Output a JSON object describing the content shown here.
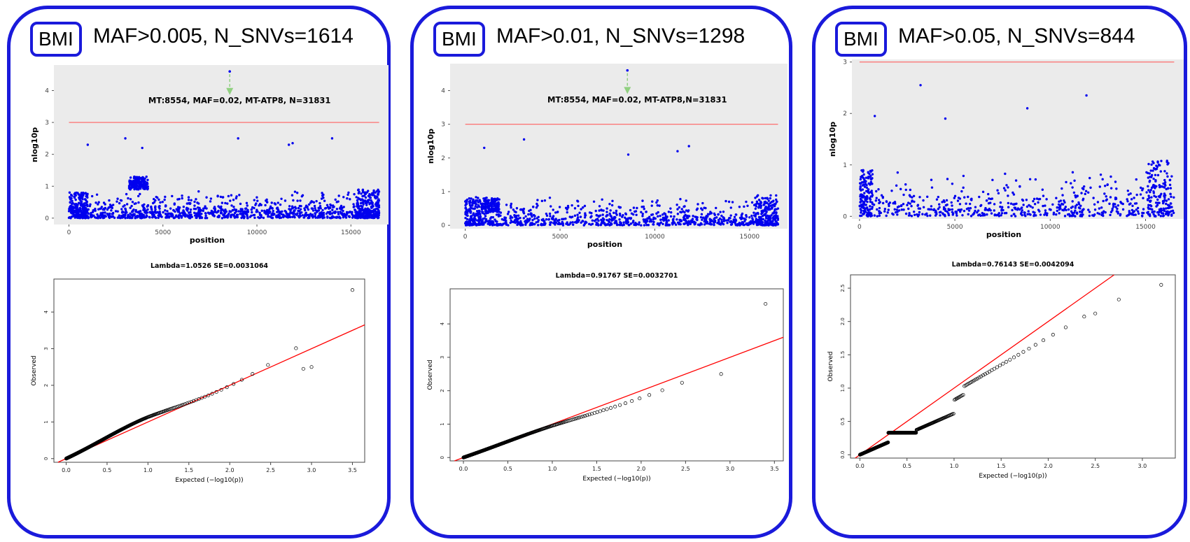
{
  "chart_data": [
    {
      "panel_label": "BMI",
      "title": "MAF>0.005, N_SNVs=1614",
      "manhattan": {
        "type": "scatter",
        "xlabel": "position",
        "ylabel": "nlog10p",
        "xlim": [
          -800,
          17000
        ],
        "ylim": [
          -0.2,
          4.8
        ],
        "xticks": [
          0,
          5000,
          10000,
          15000
        ],
        "yticks": [
          0,
          1,
          2,
          3,
          4
        ],
        "threshold": 3,
        "n_points": 1614,
        "top_hit": {
          "x": 8554,
          "y": 4.6
        },
        "annotation": "MT:8554, MAF=0.02,  MT-ATP8,  N=31831",
        "annotation_pos": [
          8554,
          3.6
        ],
        "background": "#ebebeb",
        "point_color": "#0000ee",
        "line_color": "#ff6060",
        "arrow_color": "#90d080",
        "seed": 11,
        "dense_zones": [
          [
            3200,
            4200,
            0.9,
            1.3
          ],
          [
            15300,
            16500,
            0.0,
            0.9
          ],
          [
            0,
            1000,
            0.0,
            0.8
          ]
        ],
        "outliers": [
          [
            3000,
            2.5
          ],
          [
            3900,
            2.2
          ],
          [
            9000,
            2.5
          ],
          [
            11700,
            2.3
          ],
          [
            11900,
            2.35
          ],
          [
            14000,
            2.5
          ],
          [
            1000,
            2.3
          ]
        ]
      },
      "qq": {
        "type": "scatter",
        "title": "Lambda=1.0526 SE=0.0031064",
        "xlabel": "Expected (−log10(p))",
        "ylabel": "Observed",
        "xlim": [
          -0.15,
          3.65
        ],
        "ylim": [
          -0.1,
          4.9
        ],
        "xticks": [
          "0.0",
          "0.5",
          "1.0",
          "1.5",
          "2.0",
          "2.5",
          "3.0",
          "3.5"
        ],
        "yticks": [
          "0",
          "1",
          "2",
          "3",
          "4"
        ],
        "lambda": 1.0526,
        "max_expected": 3.5,
        "max_observed": 4.6,
        "n_points": 1614,
        "tail_points": [
          [
            2.9,
            2.45
          ],
          [
            3.0,
            2.5
          ],
          [
            3.5,
            4.6
          ]
        ],
        "point_color": "#000000",
        "line_color": "#ff0000",
        "wave": 0.12
      }
    },
    {
      "panel_label": "BMI",
      "title": "MAF>0.01, N_SNVs=1298",
      "manhattan": {
        "type": "scatter",
        "xlabel": "position",
        "ylabel": "nlog10p",
        "xlim": [
          -800,
          17000
        ],
        "ylim": [
          -0.1,
          4.8
        ],
        "xticks": [
          0,
          5000,
          10000,
          15000
        ],
        "yticks": [
          0,
          1,
          2,
          3,
          4
        ],
        "threshold": 3,
        "n_points": 1298,
        "top_hit": {
          "x": 8554,
          "y": 4.6
        },
        "annotation": "MT:8554, MAF=0.02,  MT-ATP8,N=31831",
        "annotation_pos": [
          8554,
          3.65
        ],
        "background": "#ebebeb",
        "point_color": "#0000ee",
        "line_color": "#ff6060",
        "arrow_color": "#90d080",
        "seed": 23,
        "dense_zones": [
          [
            15300,
            16500,
            0.0,
            0.9
          ],
          [
            0,
            1000,
            0.0,
            0.8
          ],
          [
            1000,
            1800,
            0.4,
            0.8
          ]
        ],
        "outliers": [
          [
            3100,
            2.55
          ],
          [
            1000,
            2.3
          ],
          [
            11200,
            2.2
          ],
          [
            11800,
            2.35
          ],
          [
            8600,
            2.1
          ]
        ]
      },
      "qq": {
        "type": "scatter",
        "title": "Lambda=0.91767 SE=0.0032701",
        "xlabel": "Expected (−log10(p))",
        "ylabel": "Observed",
        "xlim": [
          -0.15,
          3.6
        ],
        "ylim": [
          -0.1,
          5.05
        ],
        "xticks": [
          "0.0",
          "0.5",
          "1.0",
          "1.5",
          "2.0",
          "2.5",
          "3.0",
          "3.5"
        ],
        "yticks": [
          "0",
          "1",
          "2",
          "3",
          "4"
        ],
        "lambda": 0.91767,
        "max_expected": 3.4,
        "max_observed": 4.6,
        "n_points": 1298,
        "tail_points": [
          [
            2.9,
            2.5
          ],
          [
            3.4,
            4.6
          ]
        ],
        "point_color": "#000000",
        "line_color": "#ff0000",
        "wave": 0.05
      }
    },
    {
      "panel_label": "BMI",
      "title": "MAF>0.05, N_SNVs=844",
      "manhattan": {
        "type": "scatter",
        "xlabel": "position",
        "ylabel": "nlog10p",
        "xlim": [
          -400,
          17000
        ],
        "ylim": [
          -0.05,
          3.05
        ],
        "xticks": [
          0,
          5000,
          10000,
          15000
        ],
        "yticks": [
          0,
          1,
          2,
          3
        ],
        "threshold": 3,
        "n_points": 844,
        "top_hit": null,
        "annotation": "",
        "annotation_pos": null,
        "background": "#ebebeb",
        "point_color": "#0000ee",
        "line_color": "#ff6060",
        "arrow_color": "#90d080",
        "seed": 37,
        "dense_zones": [
          [
            15100,
            16400,
            0.0,
            1.1
          ],
          [
            0,
            700,
            0.0,
            0.9
          ]
        ],
        "outliers": [
          [
            3200,
            2.55
          ],
          [
            11900,
            2.35
          ],
          [
            8800,
            2.1
          ],
          [
            800,
            1.95
          ],
          [
            4500,
            1.9
          ]
        ]
      },
      "qq": {
        "type": "scatter",
        "title": "Lambda=0.76143 SE=0.0042094",
        "xlabel": "Expected (−log10(p))",
        "ylabel": "Observed",
        "xlim": [
          -0.1,
          3.35
        ],
        "ylim": [
          -0.05,
          2.7
        ],
        "xticks": [
          "0.0",
          "0.5",
          "1.0",
          "1.5",
          "2.0",
          "2.5",
          "3.0"
        ],
        "yticks": [
          "0.0",
          "0.5",
          "1.0",
          "1.5",
          "2.0",
          "2.5"
        ],
        "lambda": 0.76143,
        "max_expected": 3.2,
        "max_observed": 2.55,
        "n_points": 844,
        "tail_points": [
          [
            2.5,
            2.12
          ],
          [
            2.75,
            2.33
          ],
          [
            3.2,
            2.55
          ]
        ],
        "point_color": "#000000",
        "line_color": "#ff0000",
        "wave": 0.0
      }
    }
  ]
}
